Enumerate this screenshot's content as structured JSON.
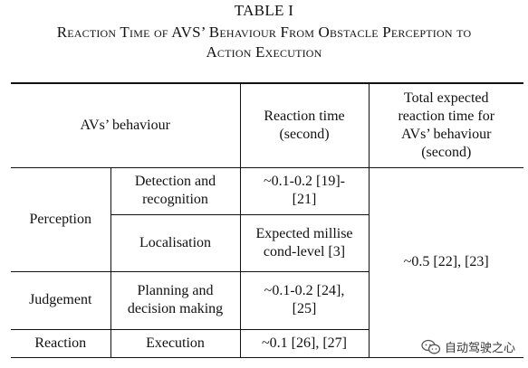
{
  "caption": {
    "label": "TABLE I",
    "title_line1": "Reaction Time of AVS’ Behaviour From Obstacle Perception to",
    "title_line2": "Action Execution"
  },
  "table": {
    "headers": {
      "behaviour": "AVs’ behaviour",
      "reaction_time": "Reaction time (second)",
      "total": "Total expected reaction time for AVs’ behaviour (second)"
    },
    "rows": {
      "perception": "Perception",
      "detection": "Detection and recognition",
      "detection_time": "~0.1-0.2 [19]-[21]",
      "localisation": "Localisation",
      "localisation_time": "Expected millisecond-level [3]",
      "judgement": "Judgement",
      "planning": "Planning and decision making",
      "planning_time": "~0.1-0.2 [24], [25]",
      "reaction": "Reaction",
      "execution": "Execution",
      "execution_time": "~0.1 [26], [27]",
      "total_value": "~0.5 [22], [23]"
    }
  },
  "watermark": {
    "text": "自动驾驶之心",
    "icon": "chat-bubbles-icon"
  }
}
